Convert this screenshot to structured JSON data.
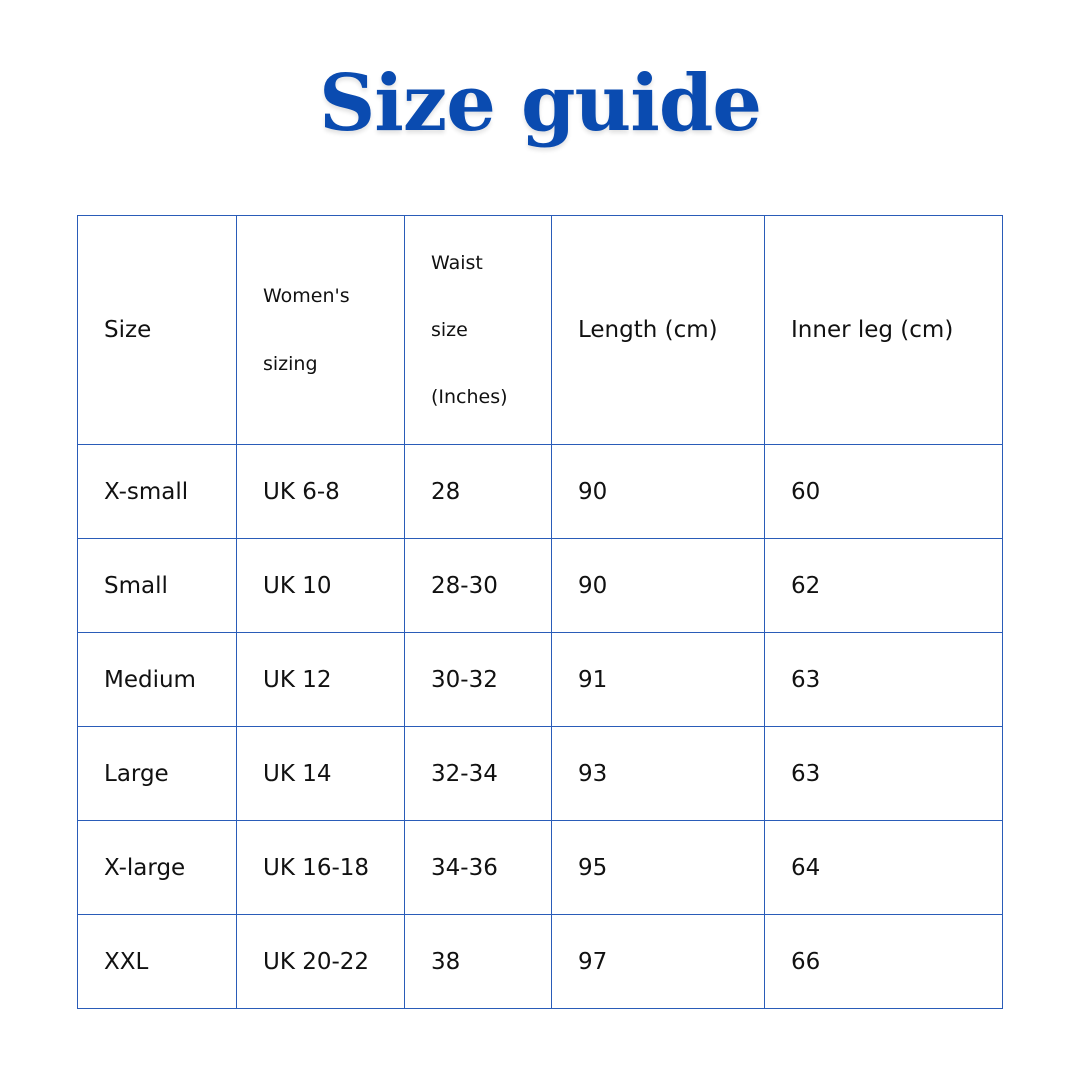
{
  "title": "Size guide",
  "colors": {
    "accent": "#0a4bb0",
    "border": "#2a5cb8"
  },
  "table": {
    "headers": {
      "size": "Size",
      "womens_line1": "Women's",
      "womens_line2": "sizing",
      "waist_line1": "Waist",
      "waist_line2": "size",
      "waist_line3": "(Inches)",
      "length": "Length (cm)",
      "inner_leg": "Inner leg (cm)"
    },
    "rows": [
      [
        "X-small",
        "UK 6-8",
        "28",
        "90",
        "60"
      ],
      [
        "Small",
        "UK 10",
        "28-30",
        "90",
        "62"
      ],
      [
        "Medium",
        "UK 12",
        "30-32",
        "91",
        "63"
      ],
      [
        "Large",
        "UK 14",
        "32-34",
        "93",
        "63"
      ],
      [
        "X-large",
        "UK 16-18",
        "34-36",
        "95",
        "64"
      ],
      [
        "XXL",
        "UK 20-22",
        "38",
        "97",
        "66"
      ]
    ]
  }
}
